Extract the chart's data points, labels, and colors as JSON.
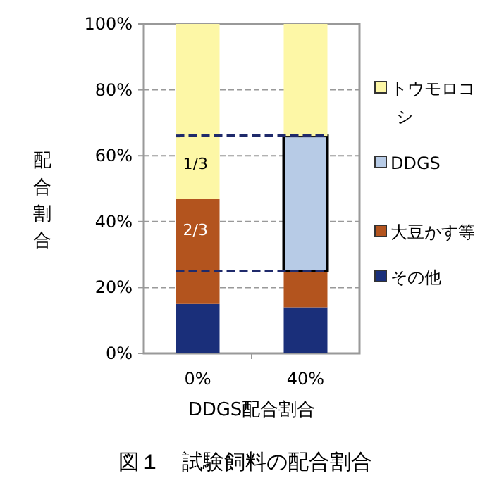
{
  "chart_data": {
    "type": "bar",
    "stacked": true,
    "title": "図１　試験飼料の配合割合",
    "xlabel": "DDGS配合割合",
    "ylabel": "配合割合",
    "categories": [
      "0%",
      "40%"
    ],
    "series": [
      {
        "name": "その他",
        "color": "#1a2f7a",
        "values": [
          15,
          14
        ]
      },
      {
        "name": "大豆かす等",
        "color": "#b3541e",
        "values": [
          32,
          11
        ]
      },
      {
        "name": "DDGS",
        "color": "#b7cbe6",
        "values": [
          0,
          41
        ]
      },
      {
        "name": "トウモロコシ",
        "color": "#fdf7a6",
        "values": [
          53,
          34
        ]
      }
    ],
    "ylim": [
      0,
      100
    ],
    "yticks": [
      {
        "value": 0,
        "label": "0%"
      },
      {
        "value": 20,
        "label": "20%"
      },
      {
        "value": 40,
        "label": "40%"
      },
      {
        "value": 60,
        "label": "60%"
      },
      {
        "value": 80,
        "label": "80%"
      },
      {
        "value": 100,
        "label": "100%"
      }
    ],
    "grid": "y",
    "legend": "right",
    "ref_lines": [
      {
        "axis": "y",
        "value": 25,
        "color": "#1f2a6b",
        "line_style": "dashed"
      },
      {
        "axis": "y",
        "value": 66,
        "color": "#1f2a6b",
        "line_style": "dashed"
      }
    ],
    "annotations": [
      "1/3",
      "2/3"
    ]
  }
}
